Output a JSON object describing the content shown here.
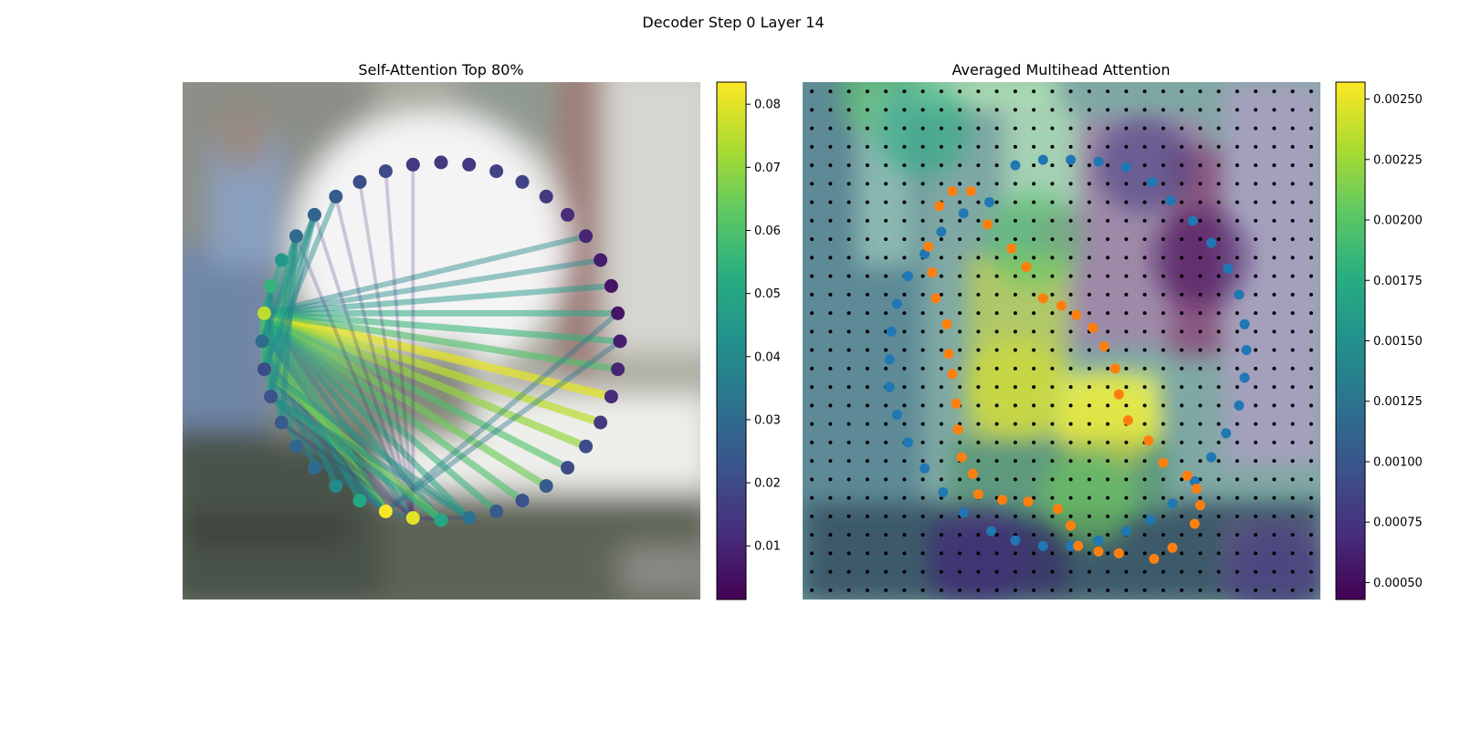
{
  "figure": {
    "title": "Decoder Step 0 Layer 14"
  },
  "chart_data": [
    {
      "type": "network",
      "title": "Self-Attention Top 80%",
      "background": "blurred photo (image tokens)",
      "node_count": 40,
      "node_values": [
        0.03,
        0.02,
        0.022,
        0.025,
        0.028,
        0.03,
        0.04,
        0.05,
        0.083,
        0.08,
        0.05,
        0.032,
        0.025,
        0.022,
        0.025,
        0.02,
        0.02,
        0.015,
        0.012,
        0.01,
        0.008,
        0.006,
        0.006,
        0.008,
        0.01,
        0.012,
        0.015,
        0.018,
        0.018,
        0.015,
        0.015,
        0.015,
        0.02,
        0.02,
        0.025,
        0.028,
        0.03,
        0.045,
        0.055,
        0.075
      ],
      "colorbar": {
        "colormap": "viridis",
        "min": 0.0015,
        "max": 0.0835,
        "ticks": [
          "0.01",
          "0.02",
          "0.03",
          "0.04",
          "0.05",
          "0.06",
          "0.07",
          "0.08"
        ]
      },
      "edges": [
        {
          "from": 39,
          "to": 9,
          "w": 0.04
        },
        {
          "from": 39,
          "to": 8,
          "w": 0.055
        },
        {
          "from": 39,
          "to": 7,
          "w": 0.05
        },
        {
          "from": 39,
          "to": 6,
          "w": 0.045
        },
        {
          "from": 39,
          "to": 5,
          "w": 0.04
        },
        {
          "from": 39,
          "to": 4,
          "w": 0.045
        },
        {
          "from": 39,
          "to": 3,
          "w": 0.05
        },
        {
          "from": 39,
          "to": 2,
          "w": 0.055
        },
        {
          "from": 39,
          "to": 1,
          "w": 0.06
        },
        {
          "from": 39,
          "to": 0,
          "w": 0.058
        },
        {
          "from": 39,
          "to": 10,
          "w": 0.045
        },
        {
          "from": 39,
          "to": 11,
          "w": 0.05
        },
        {
          "from": 39,
          "to": 12,
          "w": 0.055
        },
        {
          "from": 39,
          "to": 13,
          "w": 0.06
        },
        {
          "from": 39,
          "to": 14,
          "w": 0.065
        },
        {
          "from": 39,
          "to": 15,
          "w": 0.06
        },
        {
          "from": 39,
          "to": 16,
          "w": 0.07
        },
        {
          "from": 39,
          "to": 17,
          "w": 0.075
        },
        {
          "from": 39,
          "to": 18,
          "w": 0.08
        },
        {
          "from": 39,
          "to": 19,
          "w": 0.06
        },
        {
          "from": 39,
          "to": 20,
          "w": 0.055
        },
        {
          "from": 39,
          "to": 21,
          "w": 0.05
        },
        {
          "from": 39,
          "to": 22,
          "w": 0.045
        },
        {
          "from": 39,
          "to": 23,
          "w": 0.04
        },
        {
          "from": 39,
          "to": 24,
          "w": 0.04
        },
        {
          "from": 39,
          "to": 38,
          "w": 0.05
        },
        {
          "from": 39,
          "to": 37,
          "w": 0.05
        },
        {
          "from": 8,
          "to": 0,
          "w": 0.065
        },
        {
          "from": 8,
          "to": 1,
          "w": 0.04
        },
        {
          "from": 8,
          "to": 2,
          "w": 0.038
        },
        {
          "from": 8,
          "to": 3,
          "w": 0.036
        },
        {
          "from": 8,
          "to": 4,
          "w": 0.034
        },
        {
          "from": 8,
          "to": 21,
          "w": 0.035
        },
        {
          "from": 8,
          "to": 20,
          "w": 0.034
        },
        {
          "from": 9,
          "to": 8,
          "w": 0.033
        },
        {
          "from": 9,
          "to": 10,
          "w": 0.018
        },
        {
          "from": 9,
          "to": 11,
          "w": 0.015
        },
        {
          "from": 9,
          "to": 1,
          "w": 0.018
        },
        {
          "from": 9,
          "to": 2,
          "w": 0.016
        },
        {
          "from": 9,
          "to": 3,
          "w": 0.014
        },
        {
          "from": 9,
          "to": 31,
          "w": 0.012
        },
        {
          "from": 9,
          "to": 32,
          "w": 0.01
        },
        {
          "from": 9,
          "to": 33,
          "w": 0.01
        },
        {
          "from": 9,
          "to": 34,
          "w": 0.012
        },
        {
          "from": 9,
          "to": 35,
          "w": 0.012
        },
        {
          "from": 9,
          "to": 36,
          "w": 0.012
        },
        {
          "from": 10,
          "to": 1,
          "w": 0.065
        },
        {
          "from": 10,
          "to": 2,
          "w": 0.05
        },
        {
          "from": 11,
          "to": 1,
          "w": 0.045
        },
        {
          "from": 11,
          "to": 2,
          "w": 0.04
        },
        {
          "from": 36,
          "to": 1,
          "w": 0.055
        },
        {
          "from": 36,
          "to": 2,
          "w": 0.045
        },
        {
          "from": 36,
          "to": 0,
          "w": 0.042
        },
        {
          "from": 36,
          "to": 3,
          "w": 0.04
        },
        {
          "from": 35,
          "to": 1,
          "w": 0.05
        },
        {
          "from": 35,
          "to": 2,
          "w": 0.04
        },
        {
          "from": 35,
          "to": 0,
          "w": 0.04
        },
        {
          "from": 34,
          "to": 1,
          "w": 0.04
        },
        {
          "from": 38,
          "to": 1,
          "w": 0.045
        },
        {
          "from": 38,
          "to": 2,
          "w": 0.038
        }
      ]
    },
    {
      "type": "heatmap",
      "title": "Averaged Multihead Attention",
      "background": "blurred photo with attention overlay",
      "grid": {
        "rows": 28,
        "cols": 28,
        "marker": "black dot"
      },
      "colorbar": {
        "colormap": "viridis",
        "min": 0.00043,
        "max": 0.00257,
        "ticks": [
          "0.00050",
          "0.00075",
          "0.00100",
          "0.00125",
          "0.00150",
          "0.00175",
          "0.00200",
          "0.00225",
          "0.00250"
        ]
      },
      "hotspots": [
        {
          "col": 16,
          "row": 18,
          "value": 0.0025
        },
        {
          "col": 11,
          "row": 16,
          "value": 0.00245
        },
        {
          "col": 15,
          "row": 22,
          "value": 0.0021
        },
        {
          "col": 4,
          "row": 0,
          "value": 0.002
        },
        {
          "col": 12,
          "row": 8,
          "value": 0.002
        },
        {
          "col": 6,
          "row": 2,
          "value": 0.00175
        }
      ],
      "coldspots": [
        {
          "col": 21,
          "row": 9,
          "value": 0.0005
        },
        {
          "col": 18,
          "row": 4,
          "value": 0.0008
        },
        {
          "col": 9,
          "row": 25,
          "value": 0.0007
        },
        {
          "col": 25,
          "row": 26,
          "value": 0.0008
        }
      ],
      "series": [
        {
          "color": "#1f77b4",
          "points": [
            [
              11.0,
              4.0
            ],
            [
              12.5,
              3.7
            ],
            [
              14.0,
              3.7
            ],
            [
              15.5,
              3.8
            ],
            [
              17.0,
              4.1
            ],
            [
              18.4,
              4.9
            ],
            [
              19.4,
              5.9
            ],
            [
              20.6,
              7.0
            ],
            [
              21.6,
              8.2
            ],
            [
              22.5,
              9.6
            ],
            [
              23.1,
              11.0
            ],
            [
              23.4,
              12.6
            ],
            [
              23.5,
              14.0
            ],
            [
              23.4,
              15.5
            ],
            [
              23.1,
              17.0
            ],
            [
              22.4,
              18.5
            ],
            [
              21.6,
              19.8
            ],
            [
              20.7,
              21.1
            ],
            [
              19.5,
              22.3
            ],
            [
              18.3,
              23.2
            ],
            [
              17.0,
              23.8
            ],
            [
              15.5,
              24.3
            ],
            [
              14.0,
              24.6
            ],
            [
              12.5,
              24.6
            ],
            [
              11.0,
              24.3
            ],
            [
              9.7,
              23.8
            ],
            [
              8.2,
              22.8
            ],
            [
              7.1,
              21.7
            ],
            [
              6.1,
              20.4
            ],
            [
              5.2,
              19.0
            ],
            [
              4.6,
              17.5
            ],
            [
              4.2,
              16.0
            ],
            [
              4.2,
              14.5
            ],
            [
              4.3,
              13.0
            ],
            [
              4.6,
              11.5
            ],
            [
              5.2,
              10.0
            ],
            [
              6.1,
              8.8
            ],
            [
              7.0,
              7.6
            ],
            [
              8.2,
              6.6
            ],
            [
              9.6,
              6.0
            ]
          ]
        },
        {
          "color": "#ff7f0e",
          "points": [
            [
              7.6,
              5.4
            ],
            [
              8.6,
              5.4
            ],
            [
              9.5,
              7.2
            ],
            [
              10.8,
              8.5
            ],
            [
              11.6,
              9.5
            ],
            [
              12.5,
              11.2
            ],
            [
              13.5,
              11.6
            ],
            [
              14.3,
              12.1
            ],
            [
              15.2,
              12.8
            ],
            [
              15.8,
              13.8
            ],
            [
              16.4,
              15.0
            ],
            [
              16.6,
              16.4
            ],
            [
              17.1,
              17.8
            ],
            [
              18.2,
              18.9
            ],
            [
              19.0,
              20.1
            ],
            [
              20.3,
              20.8
            ],
            [
              20.8,
              21.5
            ],
            [
              21.0,
              22.4
            ],
            [
              20.7,
              23.4
            ],
            [
              19.5,
              24.7
            ],
            [
              18.5,
              25.3
            ],
            [
              16.6,
              25.0
            ],
            [
              15.5,
              24.9
            ],
            [
              14.4,
              24.6
            ],
            [
              14.0,
              23.5
            ],
            [
              13.3,
              22.6
            ],
            [
              11.7,
              22.2
            ],
            [
              10.3,
              22.1
            ],
            [
              9.0,
              21.8
            ],
            [
              8.7,
              20.7
            ],
            [
              8.1,
              19.8
            ],
            [
              7.9,
              18.3
            ],
            [
              7.8,
              16.9
            ],
            [
              7.6,
              15.3
            ],
            [
              7.4,
              14.2
            ],
            [
              7.3,
              12.6
            ],
            [
              6.7,
              11.2
            ],
            [
              6.5,
              9.8
            ],
            [
              6.3,
              8.4
            ],
            [
              6.9,
              6.2
            ]
          ]
        }
      ]
    }
  ]
}
